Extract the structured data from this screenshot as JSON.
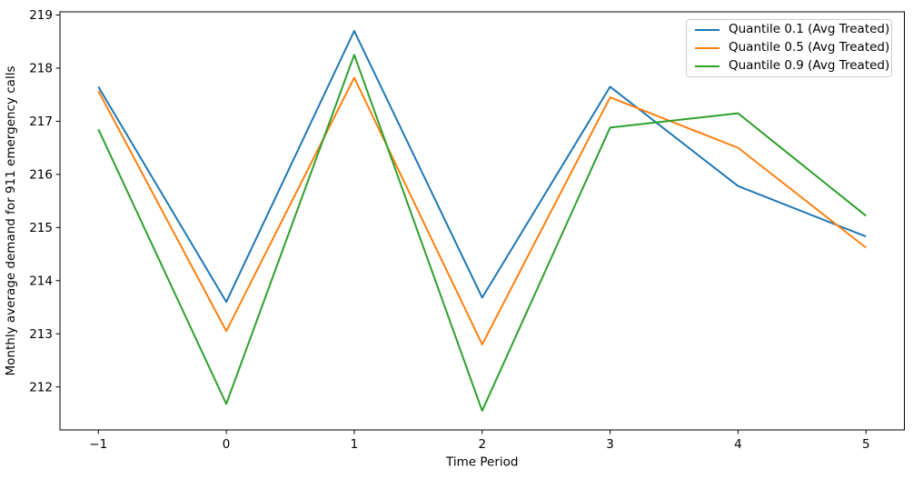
{
  "figure": {
    "background": "#ffffff",
    "text_color": "#000000",
    "spine_color": "#000000",
    "legend_border_color": "#cccccc"
  },
  "chart_data": {
    "type": "line",
    "title": "",
    "xlabel": "Time Period",
    "ylabel": "Monthly average demand for 911 emergency calls",
    "x": [
      -1,
      0,
      1,
      2,
      3,
      4,
      5
    ],
    "series": [
      {
        "name": "Quantile 0.1 (Avg Treated)",
        "color": "#1f77b4",
        "values": [
          217.65,
          213.6,
          218.7,
          213.68,
          217.65,
          215.78,
          214.83
        ]
      },
      {
        "name": "Quantile 0.5 (Avg Treated)",
        "color": "#ff7f0e",
        "values": [
          217.57,
          213.05,
          217.82,
          212.8,
          217.45,
          216.5,
          214.62
        ]
      },
      {
        "name": "Quantile 0.9 (Avg Treated)",
        "color": "#2ca02c",
        "values": [
          216.85,
          211.68,
          218.25,
          211.55,
          216.88,
          217.15,
          215.22
        ]
      }
    ],
    "xlim": [
      -1.3,
      5.3
    ],
    "ylim": [
      211.19,
      219.06
    ],
    "xticks": [
      {
        "value": -1,
        "label": "−1"
      },
      {
        "value": 0,
        "label": "0"
      },
      {
        "value": 1,
        "label": "1"
      },
      {
        "value": 2,
        "label": "2"
      },
      {
        "value": 3,
        "label": "3"
      },
      {
        "value": 4,
        "label": "4"
      },
      {
        "value": 5,
        "label": "5"
      }
    ],
    "yticks": [
      {
        "value": 212,
        "label": "212"
      },
      {
        "value": 213,
        "label": "213"
      },
      {
        "value": 214,
        "label": "214"
      },
      {
        "value": 215,
        "label": "215"
      },
      {
        "value": 216,
        "label": "216"
      },
      {
        "value": 217,
        "label": "217"
      },
      {
        "value": 218,
        "label": "218"
      },
      {
        "value": 219,
        "label": "219"
      }
    ],
    "grid": false,
    "legend": {
      "position": "upper right",
      "entries": [
        "Quantile 0.1 (Avg Treated)",
        "Quantile 0.5 (Avg Treated)",
        "Quantile 0.9 (Avg Treated)"
      ]
    }
  }
}
